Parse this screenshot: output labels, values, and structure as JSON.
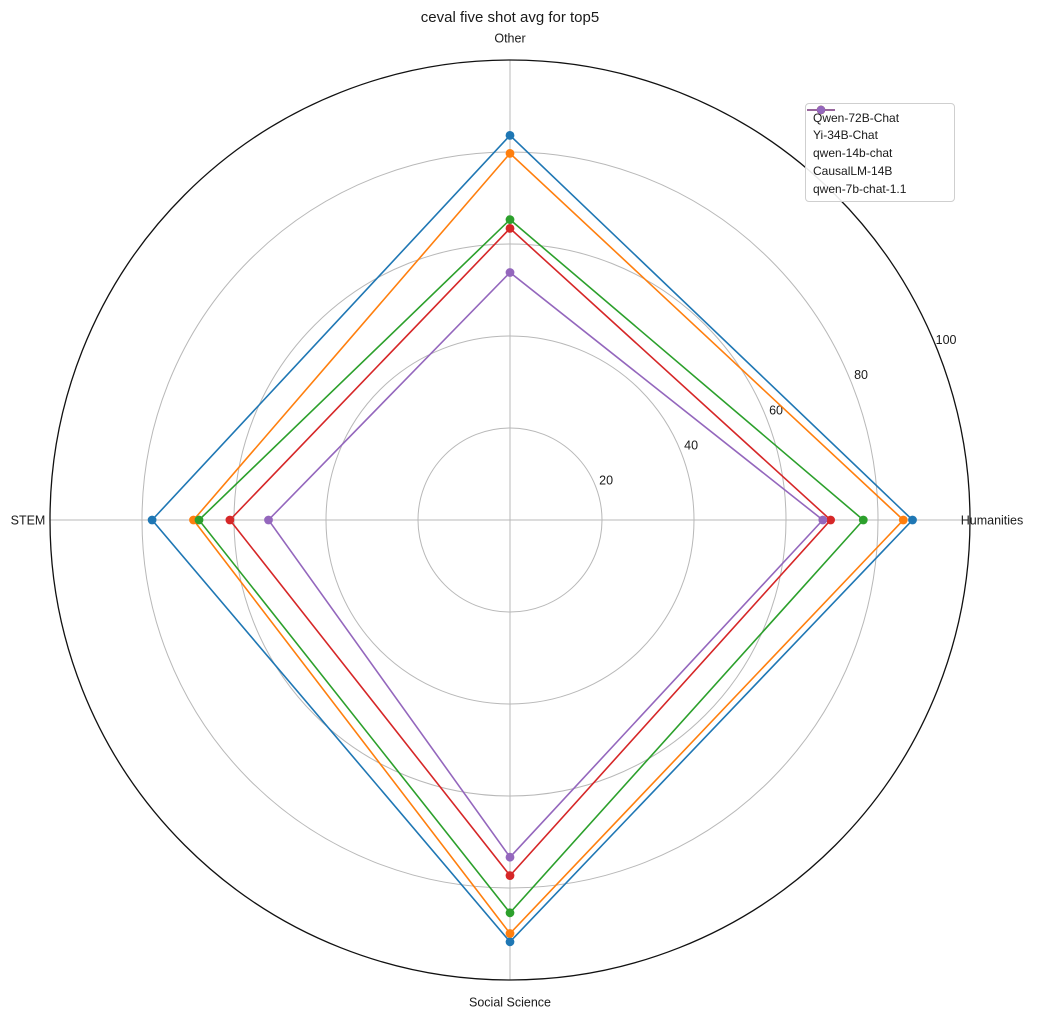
{
  "chart_data": {
    "type": "radar",
    "title": "ceval five shot avg for top5",
    "categories": [
      "Humanities",
      "Other",
      "STEM",
      "Social Science"
    ],
    "angles_deg": [
      0,
      90,
      180,
      270
    ],
    "r_axis": {
      "ticks": [
        20,
        40,
        60,
        80,
        100
      ],
      "tick_labels": [
        "20",
        "40",
        "60",
        "80",
        "100"
      ],
      "min": 0,
      "max": 100,
      "tick_angle_deg": 22.5
    },
    "series": [
      {
        "name": "Qwen-72B-Chat",
        "color": "#1f77b4",
        "values": [
          87.5,
          83.6,
          77.8,
          91.7
        ]
      },
      {
        "name": "Yi-34B-Chat",
        "color": "#ff7f0e",
        "values": [
          85.5,
          79.7,
          68.8,
          89.9
        ]
      },
      {
        "name": "qwen-14b-chat",
        "color": "#2ca02c",
        "values": [
          76.8,
          65.3,
          67.6,
          85.4
        ]
      },
      {
        "name": "CausalLM-14B",
        "color": "#d62728",
        "values": [
          69.7,
          63.4,
          60.9,
          77.3
        ]
      },
      {
        "name": "qwen-7b-chat-1.1",
        "color": "#9467bd",
        "values": [
          68.0,
          53.8,
          52.5,
          73.3
        ]
      }
    ],
    "legend": {
      "position": "upper right"
    },
    "grid": true,
    "grid_color": "#b8b8b8",
    "spine_color": "#111111",
    "background": "#ffffff"
  }
}
